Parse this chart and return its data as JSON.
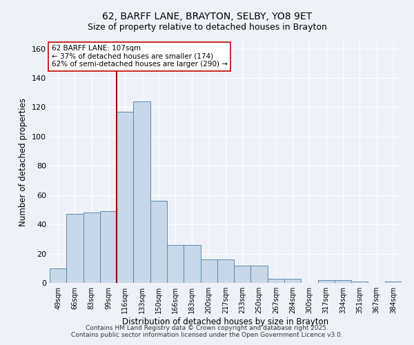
{
  "title1": "62, BARFF LANE, BRAYTON, SELBY, YO8 9ET",
  "title2": "Size of property relative to detached houses in Brayton",
  "xlabel": "Distribution of detached houses by size in Brayton",
  "ylabel": "Number of detached properties",
  "categories": [
    "49sqm",
    "66sqm",
    "83sqm",
    "99sqm",
    "116sqm",
    "133sqm",
    "150sqm",
    "166sqm",
    "183sqm",
    "200sqm",
    "217sqm",
    "233sqm",
    "250sqm",
    "267sqm",
    "284sqm",
    "300sqm",
    "317sqm",
    "334sqm",
    "351sqm",
    "367sqm",
    "384sqm"
  ],
  "values": [
    10,
    47,
    48,
    49,
    117,
    124,
    56,
    26,
    26,
    16,
    16,
    12,
    12,
    3,
    3,
    0,
    2,
    2,
    1,
    0,
    1
  ],
  "bar_color": "#c8d8e8",
  "bar_edge_color": "#5a8ab0",
  "bg_color": "#eef2f8",
  "grid_color": "#ffffff",
  "vline_x": 3.5,
  "vline_color": "#8b0000",
  "annotation_text": "62 BARFF LANE: 107sqm\n← 37% of detached houses are smaller (174)\n62% of semi-detached houses are larger (290) →",
  "annotation_box_color": "#ffffff",
  "annotation_box_edge": "#cc0000",
  "ylim": [
    0,
    165
  ],
  "yticks": [
    0,
    20,
    40,
    60,
    80,
    100,
    120,
    140,
    160
  ],
  "footer": "Contains HM Land Registry data © Crown copyright and database right 2025.\nContains public sector information licensed under the Open Government Licence v3.0."
}
